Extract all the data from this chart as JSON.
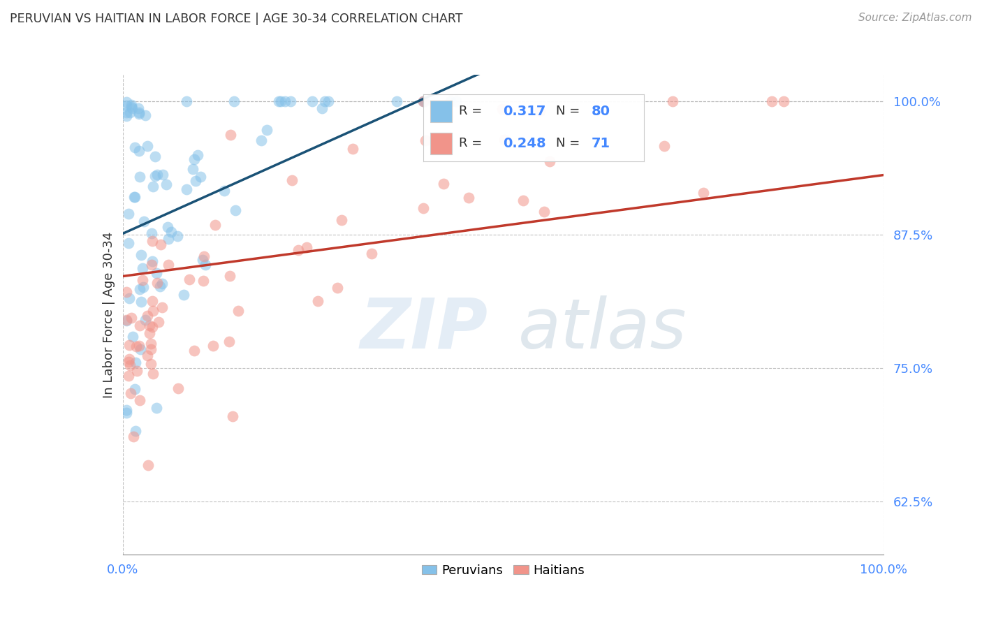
{
  "title": "PERUVIAN VS HAITIAN IN LABOR FORCE | AGE 30-34 CORRELATION CHART",
  "source": "Source: ZipAtlas.com",
  "ylabel": "In Labor Force | Age 30-34",
  "xlim": [
    0.0,
    1.0
  ],
  "ylim": [
    0.575,
    1.025
  ],
  "yticks": [
    0.625,
    0.75,
    0.875,
    1.0
  ],
  "ytick_labels": [
    "62.5%",
    "75.0%",
    "87.5%",
    "100.0%"
  ],
  "xtick_labels": [
    "0.0%",
    "100.0%"
  ],
  "peruvian_color": "#85C1E9",
  "haitian_color": "#F1948A",
  "peruvian_line_color": "#1A5276",
  "haitian_line_color": "#C0392B",
  "peruvian_dash_color": "#5D8AA8",
  "peruvian_R": "0.317",
  "peruvian_N": "80",
  "haitian_R": "0.248",
  "haitian_N": "71",
  "background_color": "#ffffff",
  "grid_color": "#bbbbbb",
  "tick_color": "#4488FF",
  "legend_label_peru": "Peruvians",
  "legend_label_haiti": "Haitians",
  "watermark": "ZIPatlas",
  "watermark_zip_color": "#C8D8E8",
  "watermark_atlas_color": "#B0C4DE"
}
